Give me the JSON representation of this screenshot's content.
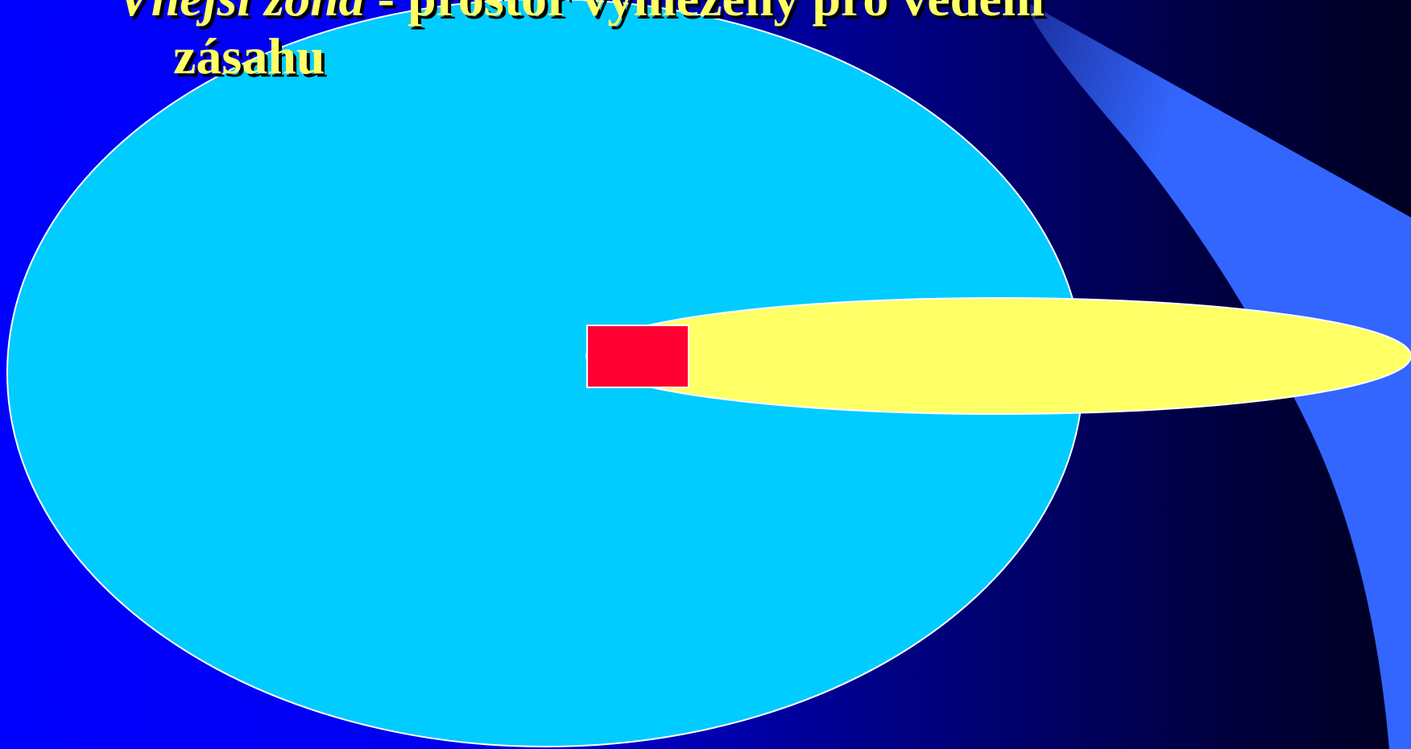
{
  "slide": {
    "title_term": "Vnější zóna",
    "title_rest": " - prostor vymezený pro vedení",
    "title_line2": "zásahu"
  },
  "colors": {
    "background_left": "#0000FF",
    "background_right": "#000022",
    "accent_swoosh": "#3366FF",
    "outer_zone": "#00CCFF",
    "danger_plume": "#FFFF66",
    "incident_source": "#FF0033",
    "outline": "#FFFFFF",
    "title_text": "#FFFF66"
  },
  "diagram": {
    "shapes": [
      {
        "name": "outer-zone-ellipse",
        "meaning": "outer zone"
      },
      {
        "name": "danger-plume-ellipse",
        "meaning": "plume"
      },
      {
        "name": "incident-source-rect",
        "meaning": "incident source"
      }
    ]
  }
}
